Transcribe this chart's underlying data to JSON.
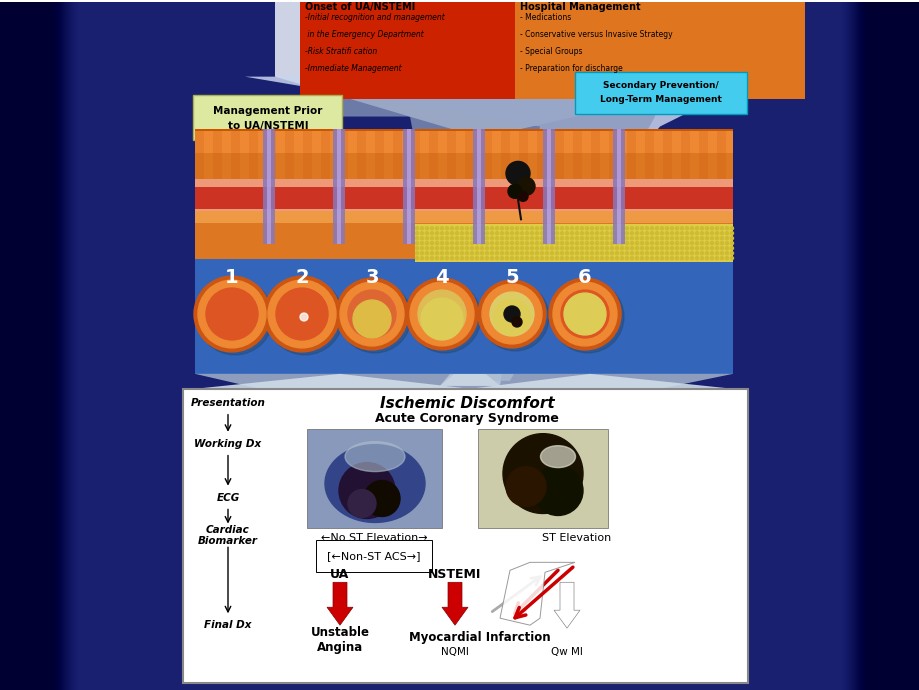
{
  "bg_color": "#1a2070",
  "top_left_box": {
    "color": "#cc2200",
    "title": "Onset of UA/NSTEMI",
    "lines": [
      "-Initial recognition and management",
      " in the Emergency Department",
      "-Risk Stratifi cation",
      "-Immediate Management"
    ]
  },
  "top_right_box": {
    "color": "#e07520",
    "title": "Hospital Management",
    "lines": [
      "- Medications",
      "- Conservative versus Invasive Strategy",
      "- Special Groups",
      "- Preparation for discharge"
    ]
  },
  "mid_left_box_color": "#dde8a0",
  "mid_left_text": "Management Prior\nto UA/NSTEMI",
  "mid_right_box_color": "#44ccee",
  "mid_right_text": "Secondary Prevention/\nLong-Term Management",
  "ischemic_title": "Ischemic Discomfort",
  "acs_subtitle": "Acute Coronary Syndrome",
  "flow_labels": [
    "Presentation",
    "Working Dx",
    "ECG",
    "Cardiac\nBiomarker",
    "Final Dx"
  ],
  "flow_y": [
    402,
    443,
    497,
    535,
    625
  ],
  "no_st_text": "←No ST Elevation→",
  "st_text": "ST Elevation",
  "non_st_text": "[←Non-ST ACS→]",
  "ua_label": "UA",
  "nstemi_label": "NSTEMI",
  "unstable_angina": "Unstable\nAngina",
  "myocardial_infarction": "Myocardial Infarction",
  "nqmi": "NQMI",
  "qw_mi": "Qw MI",
  "red_arrow_color": "#cc0000",
  "artery_bg": "#3366bb",
  "artery_orange": "#d06020",
  "artery_red": "#cc3333",
  "artery_yellow": "#ddcc44",
  "div_color": "#9988cc"
}
